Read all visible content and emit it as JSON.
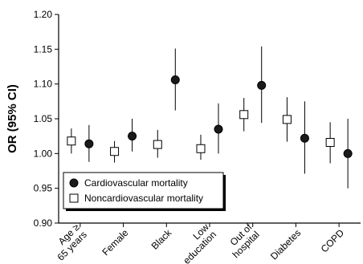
{
  "chart_data": {
    "type": "scatter",
    "ylabel": "OR (95% CI)",
    "ylim": [
      0.9,
      1.2
    ],
    "yticks": [
      "0.90",
      "0.95",
      "1.00",
      "1.05",
      "1.10",
      "1.15",
      "1.20"
    ],
    "categories": [
      [
        "Age ≥",
        "65 years"
      ],
      [
        "Female"
      ],
      [
        "Black"
      ],
      [
        "Low",
        "education"
      ],
      [
        "Out of",
        "hospital"
      ],
      [
        "Diabetes"
      ],
      [
        "COPD"
      ]
    ],
    "series": [
      {
        "name": "Cardiovascular mortality",
        "marker": "filled-circle",
        "values": [
          1.014,
          1.025,
          1.106,
          1.035,
          1.098,
          1.022,
          1.0
        ],
        "lower": [
          0.988,
          1.003,
          1.062,
          1.0,
          1.044,
          0.971,
          0.95
        ],
        "upper": [
          1.041,
          1.05,
          1.151,
          1.072,
          1.154,
          1.075,
          1.05
        ]
      },
      {
        "name": "Noncardiovascular mortality",
        "marker": "open-square",
        "values": [
          1.018,
          1.003,
          1.013,
          1.007,
          1.056,
          1.049,
          1.016
        ],
        "lower": [
          1.0,
          0.987,
          0.994,
          0.991,
          1.032,
          1.017,
          0.986
        ],
        "upper": [
          1.036,
          1.018,
          1.034,
          1.027,
          1.08,
          1.081,
          1.045
        ]
      }
    ],
    "legend_position": "bottom-left",
    "grid": false,
    "colors": {
      "axis": "#000000",
      "marker_fill": "#1a1a1a",
      "open_marker_fill": "#ffffff",
      "background": "#ffffff"
    }
  }
}
